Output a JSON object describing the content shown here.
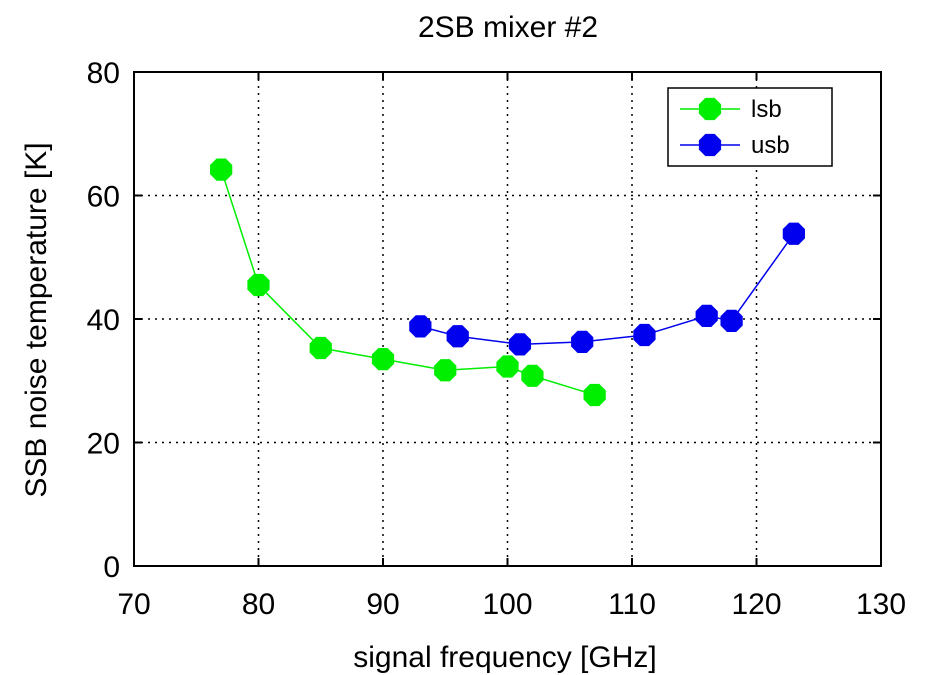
{
  "chart_data": {
    "type": "line",
    "title": "2SB mixer #2",
    "xlabel": "signal frequency [GHz]",
    "ylabel": "SSB noise temperature [K]",
    "xlim": [
      70,
      130
    ],
    "ylim": [
      0,
      80
    ],
    "xticks": [
      70,
      80,
      90,
      100,
      110,
      120,
      130
    ],
    "yticks": [
      0,
      20,
      40,
      60,
      80
    ],
    "grid": true,
    "legend_position": "top-right",
    "series": [
      {
        "name": "lsb",
        "color": "#00ee00",
        "marker": "octagon",
        "x": [
          77,
          80,
          85,
          90,
          95,
          100,
          102,
          107
        ],
        "y": [
          64.2,
          45.5,
          35.3,
          33.5,
          31.7,
          32.3,
          30.8,
          27.7
        ]
      },
      {
        "name": "usb",
        "color": "#0000ee",
        "marker": "octagon",
        "x": [
          93,
          96,
          101,
          106,
          111,
          116,
          118,
          123
        ],
        "y": [
          38.8,
          37.2,
          35.9,
          36.3,
          37.4,
          40.5,
          39.7,
          53.8
        ]
      }
    ]
  }
}
